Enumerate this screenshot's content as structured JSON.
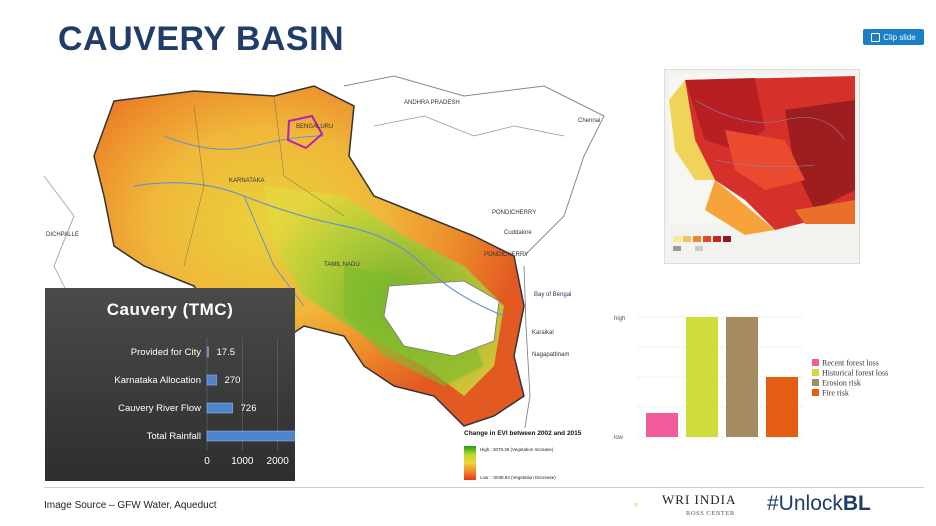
{
  "slide": {
    "title": "CAUVERY BASIN",
    "clip_label": "Clip slide",
    "source": "Image Source – GFW Water, Aqueduct",
    "brand_main": "WRI INDIA",
    "brand_sub": "ROSS CENTER",
    "hashtag_prefix": "#Unlock",
    "hashtag_bold": "BL"
  },
  "map": {
    "labels": {
      "andhra": "ANDHRA PRADESH",
      "chennai": "Chennai",
      "pondicherry1": "PONDICHERRY",
      "pondicherry2": "PONDICHERRY",
      "bay": "Bay of Bengal",
      "tamilnadu": "TAMIL NADU",
      "karnataka": "KARNATAKA",
      "bengaluru": "BENGALURU",
      "cuddalore": "Cuddalore",
      "karaikal": "Karaikal",
      "nagapattinam": "Nagapattinam",
      "dichpalle": "DICHPALLE"
    },
    "legend": {
      "title": "Change in EVI between 2002 and 2015",
      "high": "High : 3079.38 (Vegetation Increase)",
      "low": "Low : -3038.83 (Vegetation Decrease)"
    }
  },
  "colors": {
    "title": "#1f3d68",
    "clip": "#1b7fc7",
    "bar_blue": "#4a86c9",
    "pink": "#f25c9a",
    "lime": "#cfdc3b",
    "khaki": "#a48c60",
    "orange": "#e35d12"
  },
  "chart_data": [
    {
      "type": "bar",
      "orientation": "horizontal",
      "title": "Cauvery (TMC)",
      "categories": [
        "Provided for City",
        "Karnataka Allocation",
        "Cauvery River Flow",
        "Total Rainfall"
      ],
      "values": [
        17.5,
        270,
        726,
        2800
      ],
      "xlim": [
        0,
        3000
      ],
      "xticks": [
        "0",
        "1000",
        "2000",
        "3000"
      ],
      "grid": true
    },
    {
      "type": "bar",
      "categories": [
        "Recent forest loss",
        "Historical forest loss",
        "Erosion risk",
        "Fire risk"
      ],
      "values": [
        0.2,
        1.0,
        1.0,
        0.5
      ],
      "ylim": [
        0,
        1
      ],
      "yticks": [
        "low",
        "high"
      ],
      "legend_position": "right",
      "series_colors": [
        "#f25c9a",
        "#cfdc3b",
        "#a48c60",
        "#e35d12"
      ]
    }
  ]
}
